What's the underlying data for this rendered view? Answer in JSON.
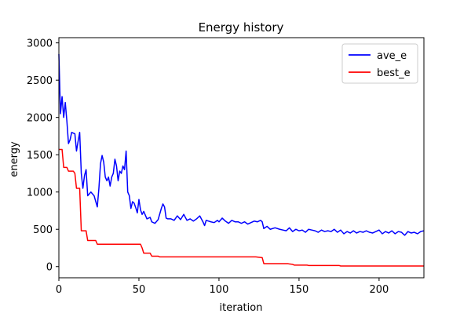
{
  "chart_data": {
    "type": "line",
    "title": "Energy history",
    "xlabel": "iteration",
    "ylabel": "energy",
    "xlim": [
      0,
      228
    ],
    "ylim": [
      -150,
      3070
    ],
    "xticks": [
      0,
      50,
      100,
      150,
      200
    ],
    "yticks": [
      0,
      500,
      1000,
      1500,
      2000,
      2500,
      3000
    ],
    "grid": false,
    "legend_placement": "top-right",
    "series": [
      {
        "name": "ave_e",
        "color": "#0000ff",
        "points": [
          [
            0,
            2850
          ],
          [
            1,
            2050
          ],
          [
            2,
            2280
          ],
          [
            3,
            2000
          ],
          [
            4,
            2200
          ],
          [
            5,
            1950
          ],
          [
            6,
            1650
          ],
          [
            7,
            1700
          ],
          [
            8,
            1800
          ],
          [
            10,
            1780
          ],
          [
            11,
            1550
          ],
          [
            12,
            1680
          ],
          [
            13,
            1800
          ],
          [
            14,
            1250
          ],
          [
            15,
            1050
          ],
          [
            16,
            1220
          ],
          [
            17,
            1300
          ],
          [
            18,
            950
          ],
          [
            20,
            1000
          ],
          [
            22,
            950
          ],
          [
            24,
            800
          ],
          [
            25,
            1050
          ],
          [
            26,
            1380
          ],
          [
            27,
            1490
          ],
          [
            28,
            1400
          ],
          [
            29,
            1200
          ],
          [
            30,
            1150
          ],
          [
            31,
            1200
          ],
          [
            32,
            1080
          ],
          [
            33,
            1200
          ],
          [
            34,
            1250
          ],
          [
            35,
            1440
          ],
          [
            36,
            1350
          ],
          [
            37,
            1150
          ],
          [
            38,
            1280
          ],
          [
            39,
            1250
          ],
          [
            40,
            1350
          ],
          [
            41,
            1300
          ],
          [
            42,
            1550
          ],
          [
            43,
            1000
          ],
          [
            44,
            950
          ],
          [
            45,
            780
          ],
          [
            46,
            870
          ],
          [
            47,
            850
          ],
          [
            48,
            790
          ],
          [
            49,
            720
          ],
          [
            50,
            900
          ],
          [
            51,
            760
          ],
          [
            52,
            700
          ],
          [
            53,
            740
          ],
          [
            54,
            690
          ],
          [
            55,
            640
          ],
          [
            57,
            660
          ],
          [
            58,
            600
          ],
          [
            60,
            580
          ],
          [
            62,
            630
          ],
          [
            64,
            780
          ],
          [
            65,
            840
          ],
          [
            66,
            800
          ],
          [
            67,
            650
          ],
          [
            68,
            640
          ],
          [
            70,
            640
          ],
          [
            72,
            620
          ],
          [
            74,
            680
          ],
          [
            76,
            630
          ],
          [
            78,
            700
          ],
          [
            80,
            620
          ],
          [
            82,
            640
          ],
          [
            84,
            610
          ],
          [
            86,
            640
          ],
          [
            88,
            680
          ],
          [
            90,
            600
          ],
          [
            91,
            550
          ],
          [
            92,
            620
          ],
          [
            95,
            600
          ],
          [
            97,
            590
          ],
          [
            99,
            620
          ],
          [
            100,
            600
          ],
          [
            102,
            650
          ],
          [
            104,
            610
          ],
          [
            106,
            580
          ],
          [
            108,
            620
          ],
          [
            110,
            600
          ],
          [
            112,
            600
          ],
          [
            114,
            580
          ],
          [
            116,
            600
          ],
          [
            118,
            570
          ],
          [
            120,
            590
          ],
          [
            122,
            610
          ],
          [
            124,
            600
          ],
          [
            126,
            620
          ],
          [
            127,
            600
          ],
          [
            128,
            510
          ],
          [
            130,
            540
          ],
          [
            132,
            500
          ],
          [
            135,
            520
          ],
          [
            138,
            500
          ],
          [
            140,
            490
          ],
          [
            142,
            480
          ],
          [
            144,
            520
          ],
          [
            146,
            470
          ],
          [
            148,
            500
          ],
          [
            150,
            480
          ],
          [
            152,
            490
          ],
          [
            154,
            460
          ],
          [
            156,
            500
          ],
          [
            158,
            490
          ],
          [
            160,
            480
          ],
          [
            162,
            460
          ],
          [
            164,
            490
          ],
          [
            166,
            470
          ],
          [
            168,
            480
          ],
          [
            170,
            470
          ],
          [
            172,
            500
          ],
          [
            174,
            460
          ],
          [
            176,
            490
          ],
          [
            178,
            440
          ],
          [
            180,
            470
          ],
          [
            182,
            450
          ],
          [
            184,
            480
          ],
          [
            186,
            450
          ],
          [
            188,
            470
          ],
          [
            190,
            460
          ],
          [
            192,
            480
          ],
          [
            194,
            460
          ],
          [
            196,
            450
          ],
          [
            198,
            470
          ],
          [
            200,
            490
          ],
          [
            202,
            440
          ],
          [
            204,
            470
          ],
          [
            206,
            450
          ],
          [
            208,
            480
          ],
          [
            210,
            440
          ],
          [
            212,
            470
          ],
          [
            214,
            460
          ],
          [
            216,
            420
          ],
          [
            218,
            470
          ],
          [
            220,
            450
          ],
          [
            222,
            460
          ],
          [
            224,
            440
          ],
          [
            226,
            470
          ],
          [
            228,
            480
          ]
        ]
      },
      {
        "name": "best_e",
        "color": "#ff0000",
        "points": [
          [
            0,
            1570
          ],
          [
            2,
            1570
          ],
          [
            3,
            1330
          ],
          [
            5,
            1330
          ],
          [
            6,
            1280
          ],
          [
            9,
            1280
          ],
          [
            10,
            1250
          ],
          [
            11,
            1050
          ],
          [
            13,
            1050
          ],
          [
            14,
            480
          ],
          [
            17,
            480
          ],
          [
            18,
            350
          ],
          [
            23,
            350
          ],
          [
            24,
            300
          ],
          [
            51,
            300
          ],
          [
            52,
            250
          ],
          [
            53,
            180
          ],
          [
            57,
            180
          ],
          [
            58,
            140
          ],
          [
            62,
            140
          ],
          [
            63,
            130
          ],
          [
            123,
            130
          ],
          [
            125,
            125
          ],
          [
            127,
            120
          ],
          [
            128,
            40
          ],
          [
            143,
            40
          ],
          [
            144,
            35
          ],
          [
            146,
            30
          ],
          [
            147,
            20
          ],
          [
            155,
            20
          ],
          [
            156,
            15
          ],
          [
            175,
            15
          ],
          [
            176,
            8
          ],
          [
            228,
            8
          ]
        ]
      }
    ]
  }
}
